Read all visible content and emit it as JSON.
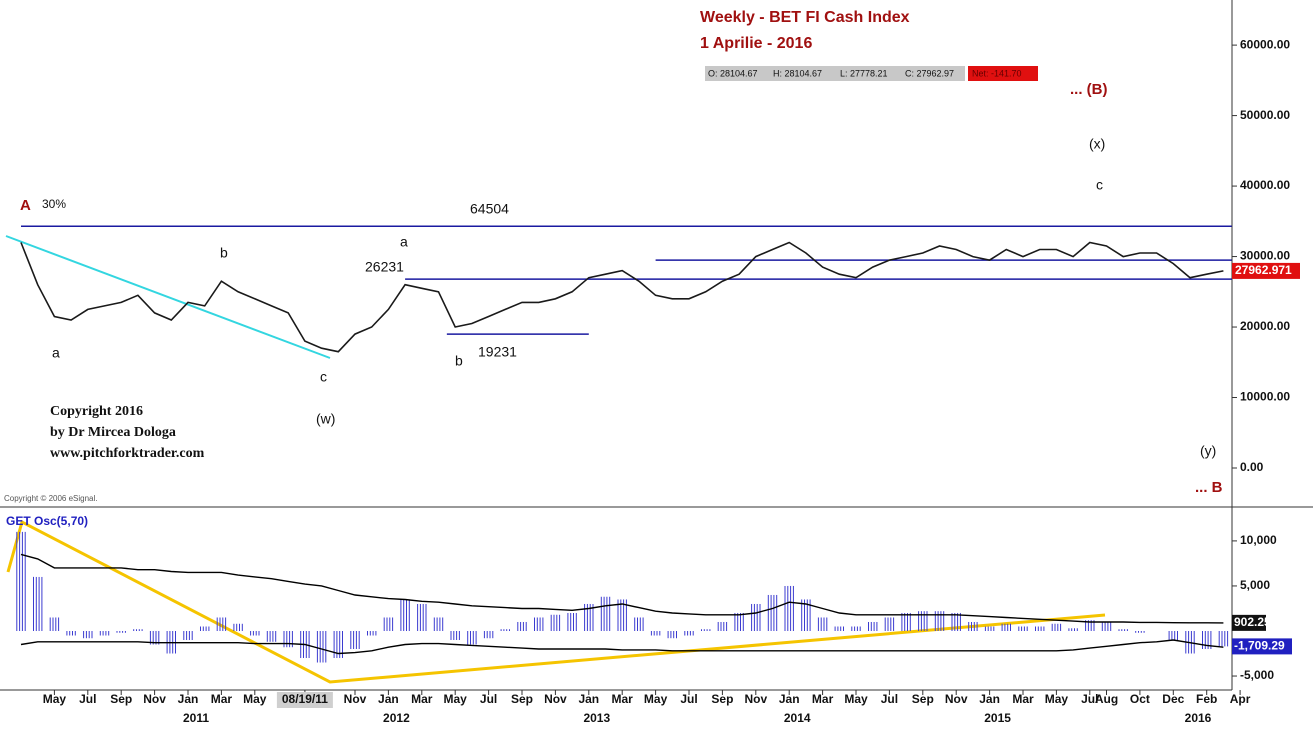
{
  "chart_data": [
    {
      "type": "line",
      "title": "Weekly - BET FI Cash Index",
      "subtitle": "1 Aprilie -  2016",
      "quote": [
        "O: 28104.67",
        "H: 28104.67",
        "L: 27778.21",
        "C: 27962.97"
      ],
      "net": "Net: -141.70",
      "copyright": [
        "Copyright 2016",
        "by Dr Mircea Dologa",
        "www.pitchforktrader.com"
      ],
      "source": "Copyright © 2006 eSignal.",
      "annotations": [
        "A",
        "30%",
        "64504",
        "a",
        "26231",
        "b",
        "a",
        "c",
        "(w)",
        "b",
        "19231",
        "... (B)",
        "(x)",
        "c",
        "(y)",
        "... B"
      ],
      "categories": [
        null,
        null,
        "May",
        null,
        "Jul",
        null,
        "Sep",
        null,
        "Nov",
        null,
        "Jan",
        null,
        "Mar",
        null,
        "May",
        null,
        null,
        "08/19/11",
        null,
        null,
        "Nov",
        null,
        "Jan",
        null,
        "Mar",
        null,
        "May",
        null,
        "Jul",
        null,
        "Sep",
        null,
        "Nov",
        null,
        "Jan",
        null,
        "Mar",
        null,
        "May",
        null,
        "Jul",
        null,
        "Sep",
        null,
        "Nov",
        null,
        "Jan",
        null,
        "Mar",
        null,
        "May",
        null,
        "Jul",
        null,
        "Sep",
        null,
        "Nov",
        null,
        "Jan",
        null,
        "Mar",
        null,
        "May",
        null,
        "Jul",
        "Aug",
        null,
        "Oct",
        null,
        "Dec",
        null,
        "Feb",
        null,
        "Apr"
      ],
      "years": [
        "2011",
        "2012",
        "2013",
        "2014",
        "2015",
        "2016"
      ],
      "series": [
        {
          "name": "BET FI",
          "color": "#1a1a1a",
          "values": [
            32000,
            26000,
            21500,
            21000,
            22500,
            23000,
            23500,
            24500,
            22000,
            21000,
            23500,
            23000,
            26500,
            25000,
            24000,
            23000,
            22000,
            18000,
            17000,
            16500,
            19000,
            20000,
            22500,
            26000,
            25500,
            25000,
            20000,
            20500,
            21500,
            22500,
            23500,
            23500,
            24000,
            25000,
            27000,
            27500,
            28000,
            26500,
            24500,
            24000,
            24000,
            25000,
            26500,
            27500,
            30000,
            31000,
            32000,
            30500,
            28500,
            27500,
            27000,
            28500,
            29500,
            30000,
            30500,
            31500,
            31000,
            30000,
            29500,
            31000,
            30000,
            31000,
            31000,
            30000,
            32000,
            31500,
            30000,
            30500,
            30500,
            29000,
            27000,
            27500,
            27962.971,
            null
          ]
        }
      ],
      "last_value": 27962.971,
      "levels": [
        {
          "value": 34300,
          "start": 0,
          "end": 72.5
        },
        {
          "value": 29500,
          "start": 38,
          "end": 72.5
        },
        {
          "value": 26800,
          "start": 23,
          "end": 72.5
        },
        {
          "value": 19000,
          "start": 25.5,
          "end": 34
        }
      ],
      "ylim": [
        -5250,
        66400
      ],
      "yticks": [
        {
          "value": 0,
          "label": "0.00"
        },
        {
          "value": 10000,
          "label": "10000.00"
        },
        {
          "value": 20000,
          "label": "20000.00"
        },
        {
          "value": 30000,
          "label": "30000.00"
        },
        {
          "value": 40000,
          "label": "40000.00"
        },
        {
          "value": 50000,
          "label": "50000.00"
        },
        {
          "value": 60000,
          "label": "60000.00"
        }
      ]
    },
    {
      "type": "bar",
      "title": "GET Osc(5,70)",
      "series": [
        {
          "name": "Osc",
          "color": "#3b3bd0",
          "values": [
            11000,
            6000,
            1500,
            -500,
            -800,
            -500,
            -200,
            200,
            -1500,
            -2500,
            -1000,
            500,
            1500,
            800,
            -500,
            -1200,
            -1800,
            -3000,
            -3500,
            -3000,
            -2000,
            -500,
            1500,
            3500,
            3000,
            1500,
            -1000,
            -1500,
            -800,
            200,
            1000,
            1500,
            1800,
            2000,
            3000,
            3800,
            3500,
            1500,
            -500,
            -800,
            -500,
            200,
            1000,
            2000,
            3000,
            4000,
            5000,
            3500,
            1500,
            500,
            500,
            1000,
            1500,
            2000,
            2200,
            2200,
            2000,
            1000,
            500,
            800,
            500,
            500,
            800,
            300,
            1200,
            1000,
            200,
            -200,
            0,
            -1000,
            -2500,
            -2000,
            -1709.29,
            null
          ]
        },
        {
          "name": "Upper",
          "color": "#000000",
          "values": [
            8500,
            8000,
            7000,
            7000,
            7000,
            7000,
            7000,
            6800,
            6800,
            6600,
            6500,
            6500,
            6500,
            6200,
            6000,
            5800,
            5500,
            5200,
            5000,
            4500,
            4000,
            3800,
            3600,
            3500,
            3300,
            3200,
            3000,
            2800,
            2700,
            2600,
            2500,
            2500,
            2400,
            2300,
            2500,
            2800,
            3000,
            2600,
            2200,
            2000,
            1900,
            1800,
            1800,
            1800,
            2000,
            2500,
            3200,
            3000,
            2500,
            2000,
            1800,
            1800,
            1800,
            1800,
            1800,
            1800,
            1800,
            1700,
            1600,
            1500,
            1400,
            1300,
            1200,
            1100,
            1000,
            1000,
            1000,
            950,
            950,
            920,
            910,
            905,
            902.25,
            null
          ]
        },
        {
          "name": "Lower",
          "color": "#000000",
          "values": [
            -1500,
            -1200,
            -1200,
            -1200,
            -1200,
            -1200,
            -1200,
            -1200,
            -1300,
            -1300,
            -1300,
            -1300,
            -1300,
            -1300,
            -1400,
            -1400,
            -1400,
            -1500,
            -2000,
            -2500,
            -2400,
            -2200,
            -1800,
            -1500,
            -1400,
            -1400,
            -1500,
            -1600,
            -1700,
            -1800,
            -1900,
            -2000,
            -2000,
            -2000,
            -2000,
            -2000,
            -2100,
            -2100,
            -2100,
            -2200,
            -2200,
            -2200,
            -2200,
            -2200,
            -2200,
            -2200,
            -2200,
            -2200,
            -2200,
            -2200,
            -2200,
            -2200,
            -2200,
            -2200,
            -2200,
            -2200,
            -2200,
            -2200,
            -2200,
            -2200,
            -2200,
            -2200,
            -2200,
            -2100,
            -1900,
            -1700,
            -1500,
            -1300,
            -1200,
            -1000,
            -1300,
            -1600,
            -1800,
            null
          ]
        }
      ],
      "upper_label": "902.25",
      "last_label": {
        "value": -1709.29,
        "label": "-1,709.29"
      },
      "ylim": [
        -6550,
        13430
      ],
      "yticks": [
        {
          "value": -5000,
          "label": "-5,000"
        },
        {
          "value": 5000,
          "label": "5,000"
        },
        {
          "value": 10000,
          "label": "10,000"
        }
      ]
    }
  ]
}
